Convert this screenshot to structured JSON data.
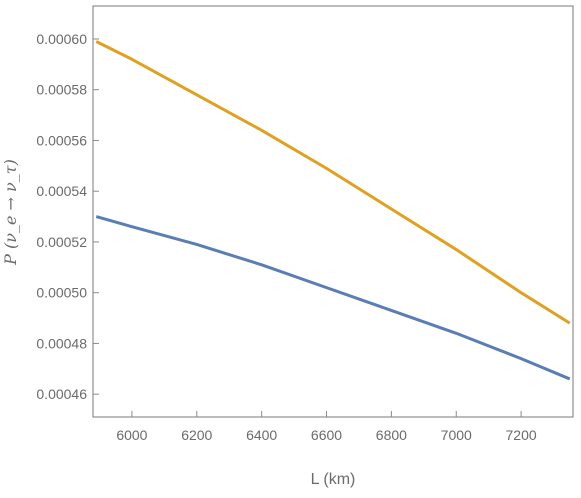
{
  "chart_data": {
    "type": "line",
    "title": "",
    "xlabel": "L (km)",
    "ylabel": "P (ν_e → ν_τ)",
    "xlim": [
      5880,
      7360
    ],
    "ylim": [
      0.000451,
      0.000613
    ],
    "x_ticks": [
      6000,
      6200,
      6400,
      6600,
      6800,
      7000,
      7200
    ],
    "x_tick_labels": [
      "6000",
      "6200",
      "6400",
      "6600",
      "6800",
      "7000",
      "7200"
    ],
    "y_ticks": [
      0.00046,
      0.00048,
      0.0005,
      0.00052,
      0.00054,
      0.00056,
      0.00058,
      0.0006
    ],
    "y_tick_labels": [
      "0.00046",
      "0.00048",
      "0.00050",
      "0.00052",
      "0.00054",
      "0.00056",
      "0.00058",
      "0.00060"
    ],
    "grid": false,
    "legend": false,
    "series": [
      {
        "color": "#e0a020",
        "x": [
          5890,
          6000,
          6200,
          6400,
          6600,
          6800,
          7000,
          7200,
          7350
        ],
        "y": [
          0.000599,
          0.000592,
          0.000578,
          0.000564,
          0.000549,
          0.000533,
          0.000517,
          0.0005,
          0.000488
        ]
      },
      {
        "color": "#5b7db5",
        "x": [
          5890,
          6000,
          6200,
          6400,
          6600,
          6800,
          7000,
          7200,
          7350
        ],
        "y": [
          0.00053,
          0.000526,
          0.000519,
          0.000511,
          0.000502,
          0.000493,
          0.000484,
          0.000474,
          0.000466
        ]
      }
    ]
  }
}
